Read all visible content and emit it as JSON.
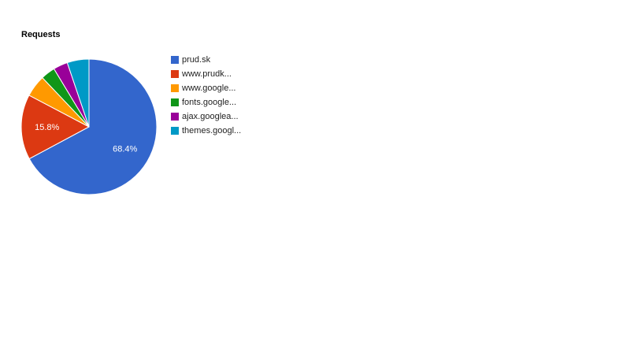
{
  "chart_data": {
    "type": "pie",
    "title": "Requests",
    "legend_position": "right",
    "categories": [
      "prud.sk",
      "www.prudk...",
      "www.google...",
      "fonts.google...",
      "ajax.googlea...",
      "themes.googl..."
    ],
    "values": [
      68.4,
      15.8,
      5.3,
      3.5,
      3.5,
      5.3
    ],
    "slice_labels": [
      "68.4%",
      "15.8%",
      "",
      "",
      "",
      ""
    ],
    "colors": [
      "#3366cc",
      "#dc3912",
      "#ff9900",
      "#109618",
      "#990099",
      "#0099c6"
    ]
  }
}
